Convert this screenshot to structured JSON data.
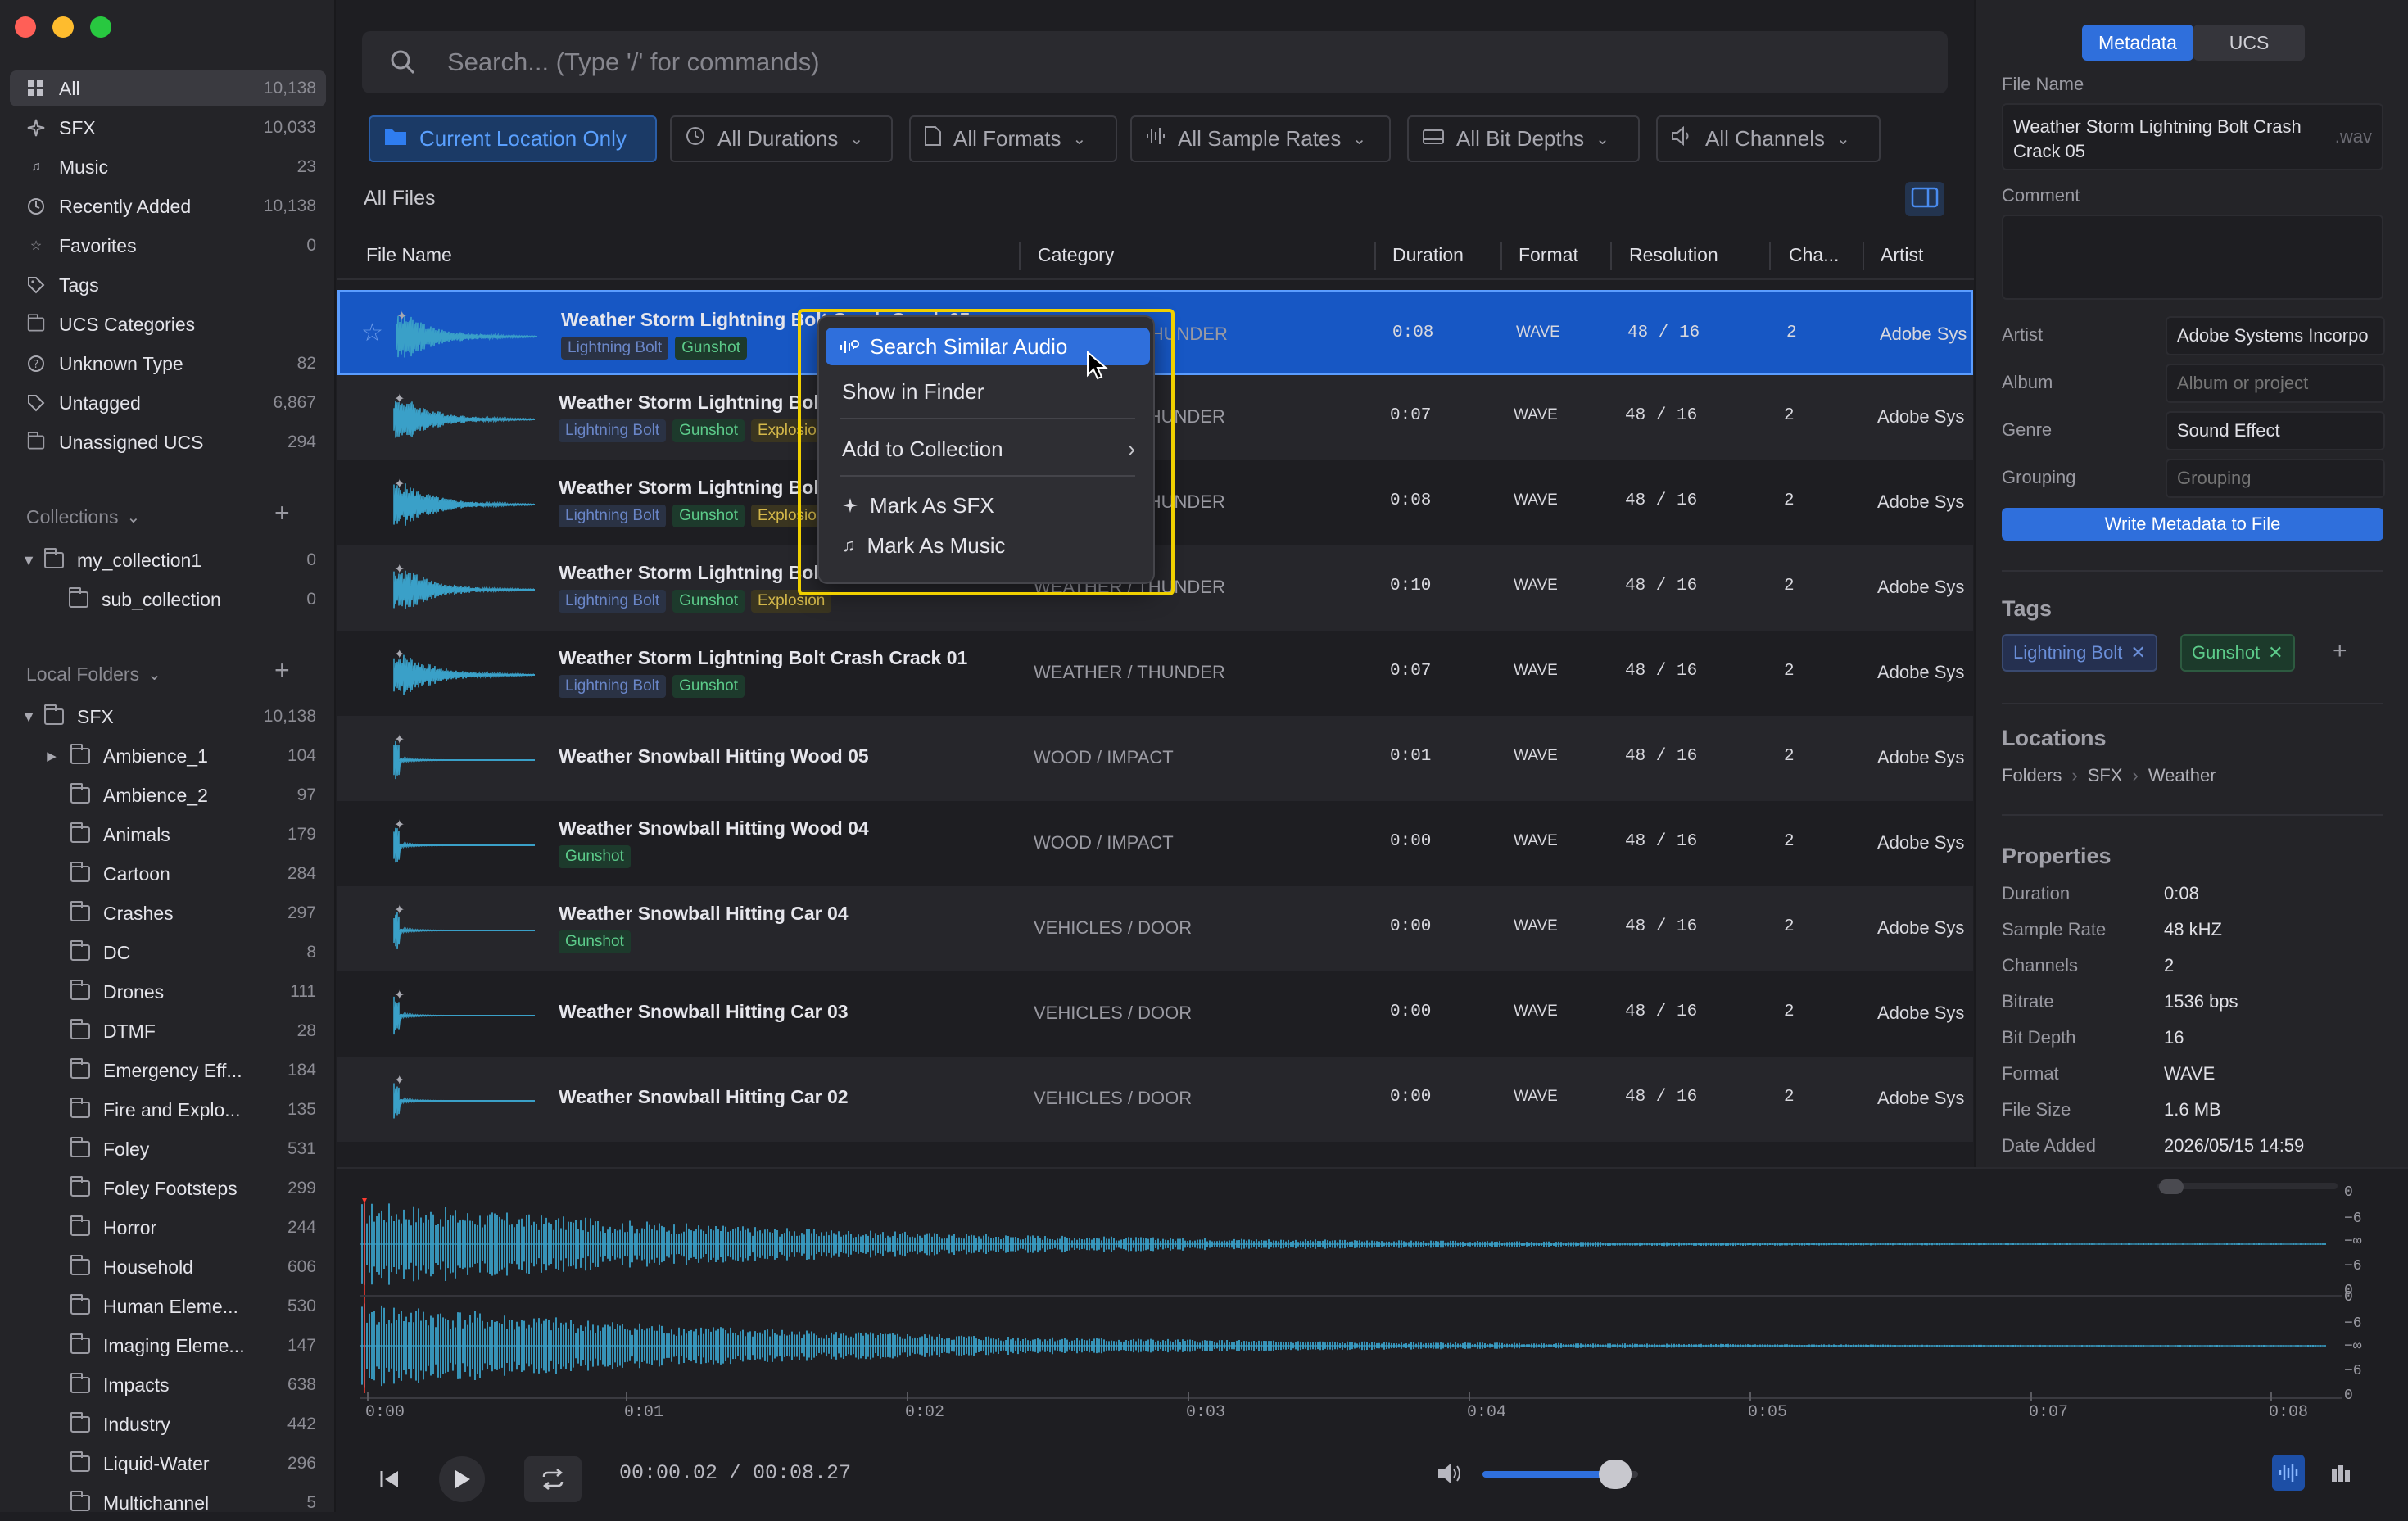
{
  "search": {
    "placeholder": "Search... (Type '/' for commands)"
  },
  "filters": [
    {
      "label": "Current Location Only",
      "icon": "folder-icon"
    },
    {
      "label": "All Durations",
      "icon": "clock-icon"
    },
    {
      "label": "All Formats",
      "icon": "document-icon"
    },
    {
      "label": "All Sample Rates",
      "icon": "waveform-icon"
    },
    {
      "label": "All Bit Depths",
      "icon": "card-icon"
    },
    {
      "label": "All Channels",
      "icon": "speaker-icon"
    }
  ],
  "list_title": "All Files",
  "columns": [
    "File Name",
    "Category",
    "Duration",
    "Format",
    "Resolution",
    "Cha...",
    "Artist"
  ],
  "sidebar": {
    "library": [
      {
        "label": "All",
        "count": "10,138",
        "icon": "grid-icon"
      },
      {
        "label": "SFX",
        "count": "10,033",
        "icon": "sparkle-icon"
      },
      {
        "label": "Music",
        "count": "23",
        "icon": "music-icon"
      },
      {
        "label": "Recently Added",
        "count": "10,138",
        "icon": "clock-icon"
      },
      {
        "label": "Favorites",
        "count": "0",
        "icon": "star-icon"
      },
      {
        "label": "Tags",
        "count": "",
        "icon": "tag-icon"
      },
      {
        "label": "UCS Categories",
        "count": "",
        "icon": "folder-icon"
      },
      {
        "label": "Unknown Type",
        "count": "82",
        "icon": "question-icon"
      },
      {
        "label": "Untagged",
        "count": "6,867",
        "icon": "tag-icon"
      },
      {
        "label": "Unassigned UCS",
        "count": "294",
        "icon": "folder-icon"
      }
    ],
    "collections_title": "Collections",
    "collections": [
      {
        "label": "my_collection1",
        "count": "0"
      },
      {
        "label": "sub_collection",
        "count": "0"
      }
    ],
    "local_folders_title": "Local Folders",
    "root_folder": {
      "label": "SFX",
      "count": "10,138"
    },
    "folders": [
      {
        "label": "Ambience_1",
        "count": "104"
      },
      {
        "label": "Ambience_2",
        "count": "97"
      },
      {
        "label": "Animals",
        "count": "179"
      },
      {
        "label": "Cartoon",
        "count": "284"
      },
      {
        "label": "Crashes",
        "count": "297"
      },
      {
        "label": "DC",
        "count": "8"
      },
      {
        "label": "Drones",
        "count": "111"
      },
      {
        "label": "DTMF",
        "count": "28"
      },
      {
        "label": "Emergency Eff...",
        "count": "184"
      },
      {
        "label": "Fire and Explo...",
        "count": "135"
      },
      {
        "label": "Foley",
        "count": "531"
      },
      {
        "label": "Foley Footsteps",
        "count": "299"
      },
      {
        "label": "Horror",
        "count": "244"
      },
      {
        "label": "Household",
        "count": "606"
      },
      {
        "label": "Human Eleme...",
        "count": "530"
      },
      {
        "label": "Imaging Eleme...",
        "count": "147"
      },
      {
        "label": "Impacts",
        "count": "638"
      },
      {
        "label": "Industry",
        "count": "442"
      },
      {
        "label": "Liquid-Water",
        "count": "296"
      },
      {
        "label": "Multichannel",
        "count": "5"
      }
    ]
  },
  "files": [
    {
      "name": "Weather Storm Lightning Bolt Crash Crack 05",
      "tags": [
        "Lightning Bolt",
        "Gunshot"
      ],
      "category": "WEATHER / THUNDER",
      "duration": "0:08",
      "format": "WAVE",
      "resolution": "48 / 16",
      "channels": "2",
      "artist": "Adobe Sys"
    },
    {
      "name": "Weather Storm Lightning Bolt Crash Crack 04",
      "tags": [
        "Lightning Bolt",
        "Gunshot",
        "Explosion"
      ],
      "category": "WEATHER / THUNDER",
      "duration": "0:07",
      "format": "WAVE",
      "resolution": "48 / 16",
      "channels": "2",
      "artist": "Adobe Sys"
    },
    {
      "name": "Weather Storm Lightning Bolt Crash Crack 03",
      "tags": [
        "Lightning Bolt",
        "Gunshot",
        "Explosion"
      ],
      "category": "WEATHER / THUNDER",
      "duration": "0:08",
      "format": "WAVE",
      "resolution": "48 / 16",
      "channels": "2",
      "artist": "Adobe Sys"
    },
    {
      "name": "Weather Storm Lightning Bolt Crash Crack 02",
      "tags": [
        "Lightning Bolt",
        "Gunshot",
        "Explosion"
      ],
      "category": "WEATHER / THUNDER",
      "duration": "0:10",
      "format": "WAVE",
      "resolution": "48 / 16",
      "channels": "2",
      "artist": "Adobe Sys"
    },
    {
      "name": "Weather Storm Lightning Bolt Crash Crack 01",
      "tags": [
        "Lightning Bolt",
        "Gunshot"
      ],
      "category": "WEATHER / THUNDER",
      "duration": "0:07",
      "format": "WAVE",
      "resolution": "48 / 16",
      "channels": "2",
      "artist": "Adobe Sys"
    },
    {
      "name": "Weather Snowball Hitting Wood 05",
      "tags": [],
      "category": "WOOD / IMPACT",
      "duration": "0:01",
      "format": "WAVE",
      "resolution": "48 / 16",
      "channels": "2",
      "artist": "Adobe Sys"
    },
    {
      "name": "Weather Snowball Hitting Wood 04",
      "tags": [
        "Gunshot"
      ],
      "category": "WOOD / IMPACT",
      "duration": "0:00",
      "format": "WAVE",
      "resolution": "48 / 16",
      "channels": "2",
      "artist": "Adobe Sys"
    },
    {
      "name": "Weather Snowball Hitting Car 04",
      "tags": [
        "Gunshot"
      ],
      "category": "VEHICLES / DOOR",
      "duration": "0:00",
      "format": "WAVE",
      "resolution": "48 / 16",
      "channels": "2",
      "artist": "Adobe Sys"
    },
    {
      "name": "Weather Snowball Hitting Car 03",
      "tags": [],
      "category": "VEHICLES / DOOR",
      "duration": "0:00",
      "format": "WAVE",
      "resolution": "48 / 16",
      "channels": "2",
      "artist": "Adobe Sys"
    },
    {
      "name": "Weather Snowball Hitting Car 02",
      "tags": [],
      "category": "VEHICLES / DOOR",
      "duration": "0:00",
      "format": "WAVE",
      "resolution": "48 / 16",
      "channels": "2",
      "artist": "Adobe Sys"
    }
  ],
  "context_menu": {
    "items": [
      "Search Similar Audio",
      "Show in Finder",
      "Add to Collection",
      "Mark As SFX",
      "Mark As Music"
    ]
  },
  "inspector": {
    "tabs": [
      "Metadata",
      "UCS"
    ],
    "file_name_label": "File Name",
    "file_name": "Weather Storm Lightning Bolt Crash Crack 05",
    "file_ext": ".wav",
    "comment_label": "Comment",
    "fields": [
      {
        "label": "Artist",
        "value": "Adobe Systems Incorpo",
        "placeholder": ""
      },
      {
        "label": "Album",
        "value": "",
        "placeholder": "Album or project"
      },
      {
        "label": "Genre",
        "value": "Sound Effect",
        "placeholder": ""
      },
      {
        "label": "Grouping",
        "value": "",
        "placeholder": "Grouping"
      }
    ],
    "write_button": "Write Metadata to File",
    "tags_title": "Tags",
    "tags": [
      "Lightning Bolt",
      "Gunshot"
    ],
    "locations_title": "Locations",
    "location_path": [
      "Folders",
      "SFX",
      "Weather"
    ],
    "properties_title": "Properties",
    "properties": [
      {
        "label": "Duration",
        "value": "0:08"
      },
      {
        "label": "Sample Rate",
        "value": "48 kHZ"
      },
      {
        "label": "Channels",
        "value": "2"
      },
      {
        "label": "Bitrate",
        "value": "1536 bps"
      },
      {
        "label": "Bit Depth",
        "value": "16"
      },
      {
        "label": "Format",
        "value": "WAVE"
      },
      {
        "label": "File Size",
        "value": "1.6 MB"
      },
      {
        "label": "Date Added",
        "value": "2026/05/15 14:59"
      }
    ]
  },
  "player": {
    "time_current": "00:00.02",
    "time_separator": "/",
    "time_total": "00:08.27",
    "volume": 0.85,
    "timeline_ticks": [
      "0:00",
      "0:01",
      "0:02",
      "0:03",
      "0:04",
      "0:05",
      "0:07",
      "0:08"
    ],
    "db_labels": [
      "0",
      "−6",
      "−∞",
      "−6",
      "0",
      "0",
      "−6",
      "−∞",
      "−6",
      "0"
    ]
  },
  "colors": {
    "accent": "#1757c4",
    "highlight": "#f0d000",
    "waveform": "#3aa0c8"
  }
}
